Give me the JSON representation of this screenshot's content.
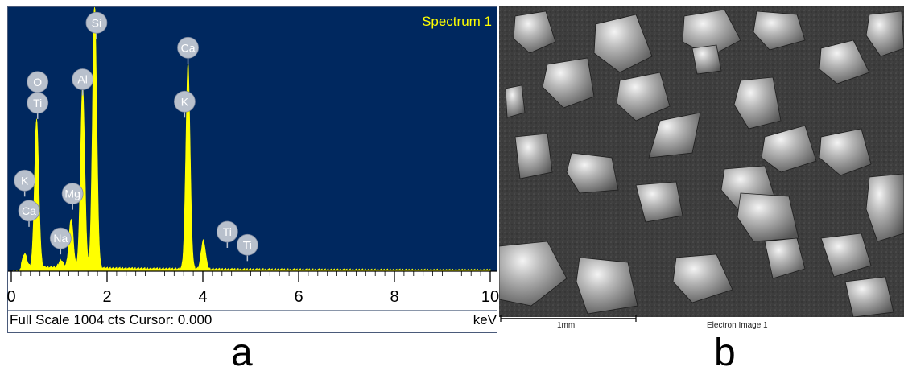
{
  "chart_data": {
    "type": "line",
    "title": "Spectrum 1",
    "xlabel": "keV",
    "ylabel": "",
    "xlim": [
      0,
      10
    ],
    "ylim": [
      0,
      1004
    ],
    "x_ticks": [
      0,
      2,
      4,
      6,
      8,
      10
    ],
    "x_tick_labels": [
      "0",
      "2",
      "4",
      "6",
      "8",
      "10"
    ],
    "grid": false,
    "colors": {
      "background": "#00285F",
      "trace": "#FFFF00",
      "label_bubble": "#B8C0CC",
      "axis": "#000000"
    },
    "peaks": [
      {
        "x": 0.28,
        "y": 50
      },
      {
        "x": 0.53,
        "y": 565
      },
      {
        "x": 1.04,
        "y": 28
      },
      {
        "x": 1.25,
        "y": 185
      },
      {
        "x": 1.49,
        "y": 695
      },
      {
        "x": 1.74,
        "y": 1004
      },
      {
        "x": 3.69,
        "y": 785
      },
      {
        "x": 4.01,
        "y": 110
      }
    ],
    "peak_labels": [
      {
        "text": "O",
        "x": 0.55,
        "y": 720
      },
      {
        "text": "Ti",
        "x": 0.55,
        "y": 640
      },
      {
        "text": "K",
        "x": 0.28,
        "y": 345
      },
      {
        "text": "Ca",
        "x": 0.37,
        "y": 230
      },
      {
        "text": "Mg",
        "x": 1.28,
        "y": 295
      },
      {
        "text": "Na",
        "x": 1.03,
        "y": 125
      },
      {
        "text": "Al",
        "x": 1.49,
        "y": 730
      },
      {
        "text": "Si",
        "x": 1.78,
        "y": 945
      },
      {
        "text": "Ca",
        "x": 3.69,
        "y": 850
      },
      {
        "text": "K",
        "x": 3.62,
        "y": 645
      },
      {
        "text": "Ti",
        "x": 4.51,
        "y": 150
      },
      {
        "text": "Ti",
        "x": 4.93,
        "y": 100
      }
    ],
    "status": "Full Scale 1004 cts Cursor: 0.000"
  },
  "panel_a": {
    "label": "a"
  },
  "panel_b": {
    "label": "b",
    "scale_bar_label": "1mm",
    "image_title": "Electron Image 1"
  }
}
